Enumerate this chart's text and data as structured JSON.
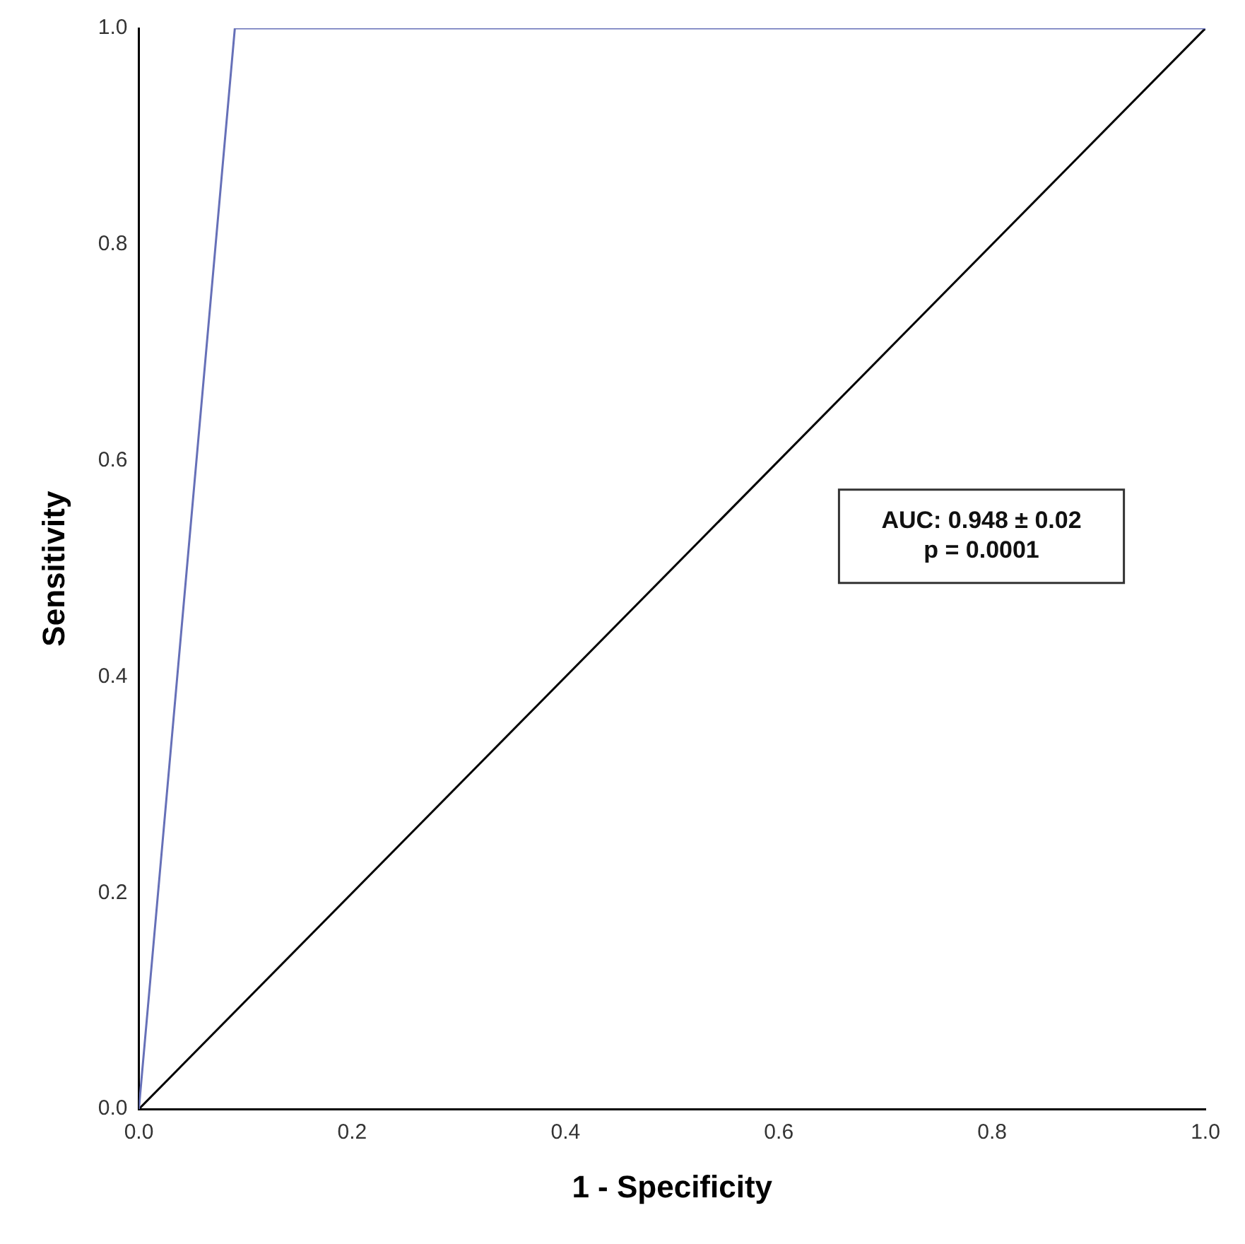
{
  "chart_data": {
    "type": "line",
    "xlabel": "1 - Specificity",
    "ylabel": "Sensitivity",
    "xlim": [
      0,
      1
    ],
    "ylim": [
      0,
      1
    ],
    "xticks": [
      {
        "value": 0,
        "label": "0.0"
      },
      {
        "value": 0.2,
        "label": "0.2"
      },
      {
        "value": 0.4,
        "label": "0.4"
      },
      {
        "value": 0.6,
        "label": "0.6"
      },
      {
        "value": 0.8,
        "label": "0.8"
      },
      {
        "value": 1,
        "label": "1.0"
      }
    ],
    "yticks": [
      {
        "value": 0,
        "label": "0.0"
      },
      {
        "value": 0.2,
        "label": "0.2"
      },
      {
        "value": 0.4,
        "label": "0.4"
      },
      {
        "value": 0.6,
        "label": "0.6"
      },
      {
        "value": 0.8,
        "label": "0.8"
      },
      {
        "value": 1,
        "label": "1.0"
      }
    ],
    "series": [
      {
        "color": "#6670b8",
        "x": [
          0,
          0.09,
          1
        ],
        "values": [
          0,
          1,
          1
        ]
      },
      {
        "color": "#000000",
        "x": [
          0,
          1
        ],
        "values": [
          0,
          1
        ]
      }
    ],
    "annotations": [
      "AUC: 0.948 ± 0.02",
      "p = 0.0001"
    ],
    "grid": false,
    "legend": false,
    "marker": "none",
    "line_style": "solid"
  }
}
